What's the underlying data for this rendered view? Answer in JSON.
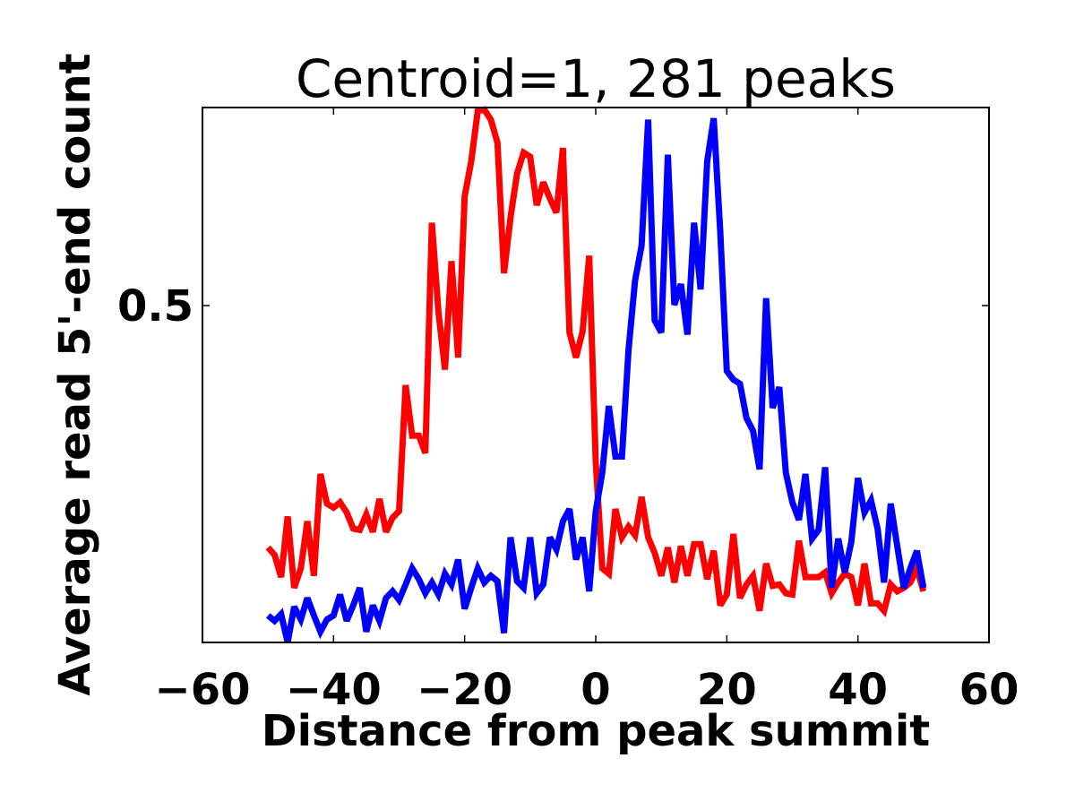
{
  "chart_data": {
    "type": "line",
    "title": "Centroid=1, 281 peaks",
    "xlabel": "Distance from peak summit",
    "ylabel": "Average read 5'-end count",
    "xlim": [
      -60,
      60
    ],
    "ylim": [
      0,
      0.794
    ],
    "xticks": [
      -60,
      -40,
      -20,
      0,
      20,
      40,
      60
    ],
    "xtick_labels": [
      "−60",
      "−40",
      "−20",
      "0",
      "20",
      "40",
      "60"
    ],
    "yticks": [
      0.5
    ],
    "ytick_labels": [
      "0.5"
    ],
    "grid": false,
    "x_start": -50,
    "x_step": 1,
    "series": [
      {
        "name": "red",
        "color": "#ff0000",
        "values": [
          0.141,
          0.13,
          0.097,
          0.187,
          0.081,
          0.11,
          0.18,
          0.099,
          0.25,
          0.206,
          0.2,
          0.208,
          0.193,
          0.169,
          0.167,
          0.19,
          0.164,
          0.213,
          0.164,
          0.185,
          0.195,
          0.382,
          0.307,
          0.307,
          0.281,
          0.623,
          0.491,
          0.405,
          0.566,
          0.423,
          0.662,
          0.714,
          0.789,
          0.791,
          0.776,
          0.742,
          0.548,
          0.631,
          0.696,
          0.727,
          0.721,
          0.649,
          0.683,
          0.659,
          0.638,
          0.734,
          0.46,
          0.423,
          0.462,
          0.574,
          0.268,
          0.11,
          0.102,
          0.198,
          0.156,
          0.172,
          0.159,
          0.216,
          0.156,
          0.133,
          0.099,
          0.141,
          0.089,
          0.143,
          0.099,
          0.146,
          0.146,
          0.094,
          0.136,
          0.055,
          0.071,
          0.161,
          0.066,
          0.086,
          0.099,
          0.047,
          0.117,
          0.084,
          0.086,
          0.073,
          0.071,
          0.151,
          0.097,
          0.097,
          0.097,
          0.104,
          0.073,
          0.089,
          0.102,
          0.097,
          0.055,
          0.117,
          0.058,
          0.058,
          0.047,
          0.086,
          0.076,
          0.081,
          0.089,
          0.11,
          0.076
        ]
      },
      {
        "name": "blue",
        "color": "#0000ff",
        "values": [
          0.04,
          0.032,
          0.042,
          0.0,
          0.053,
          0.034,
          0.066,
          0.04,
          0.016,
          0.034,
          0.04,
          0.071,
          0.032,
          0.055,
          0.081,
          0.016,
          0.055,
          0.032,
          0.066,
          0.076,
          0.063,
          0.086,
          0.11,
          0.094,
          0.073,
          0.089,
          0.071,
          0.102,
          0.086,
          0.123,
          0.05,
          0.081,
          0.11,
          0.089,
          0.099,
          0.091,
          0.014,
          0.156,
          0.091,
          0.081,
          0.156,
          0.073,
          0.086,
          0.156,
          0.138,
          0.18,
          0.198,
          0.123,
          0.156,
          0.076,
          0.195,
          0.252,
          0.351,
          0.276,
          0.276,
          0.434,
          0.537,
          0.589,
          0.776,
          0.478,
          0.46,
          0.724,
          0.501,
          0.532,
          0.457,
          0.623,
          0.524,
          0.714,
          0.778,
          0.61,
          0.403,
          0.39,
          0.384,
          0.333,
          0.314,
          0.257,
          0.511,
          0.348,
          0.379,
          0.252,
          0.208,
          0.182,
          0.25,
          0.154,
          0.167,
          0.26,
          0.081,
          0.154,
          0.104,
          0.149,
          0.244,
          0.193,
          0.211,
          0.169,
          0.089,
          0.206,
          0.143,
          0.081,
          0.11,
          0.136,
          0.081
        ]
      }
    ]
  }
}
